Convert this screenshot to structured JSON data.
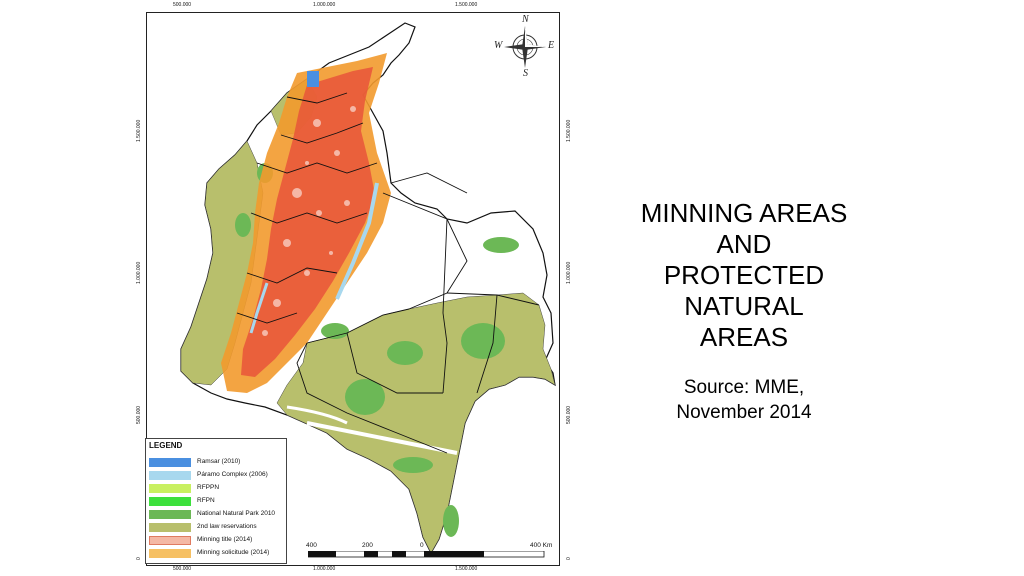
{
  "coordinates": {
    "top": [
      "500.000",
      "1.000.000",
      "1.500.000"
    ],
    "bottom": [
      "500.000",
      "1.000.000",
      "1.500.000"
    ],
    "left": [
      "1.500.000",
      "1.000.000",
      "500.000",
      "0"
    ],
    "right": [
      "1.500.000",
      "1.000.000",
      "500.000",
      "0"
    ]
  },
  "compass": {
    "north": "N",
    "south": "S",
    "east": "E",
    "west": "W"
  },
  "legend": {
    "title": "LEGEND",
    "items": [
      {
        "label": "Ramsar (2010)",
        "color": "#4a8fe0"
      },
      {
        "label": "Páramo Complex (2006)",
        "color": "#a8d8ee"
      },
      {
        "label": "RFPPN",
        "color": "#c8f060"
      },
      {
        "label": "RFPN",
        "color": "#3ce03c"
      },
      {
        "label": "National Natural Park 2010",
        "color": "#6cb856"
      },
      {
        "label": "2nd law reservations",
        "color": "#b8bf6c"
      },
      {
        "label": "Minning title (2014)",
        "color": "#f4b8a4"
      },
      {
        "label": "Minning solicitude (2014)",
        "color": "#f6c063"
      }
    ]
  },
  "scalebar": {
    "labels": [
      "400",
      "200",
      "0",
      "400 Km"
    ]
  },
  "title": {
    "lines": [
      "MINNING AREAS",
      "AND",
      "PROTECTED",
      "NATURAL",
      "AREAS"
    ]
  },
  "source": {
    "lines": [
      "Source: MME,",
      "November 2014"
    ]
  },
  "colors": {
    "reservation": "#b8bf6c",
    "park": "#6cb856",
    "mining_title": "#e8553a",
    "mining_solicitude": "#f29a2e",
    "ramsar": "#4a8fe0",
    "paramo": "#a8d8ee"
  }
}
